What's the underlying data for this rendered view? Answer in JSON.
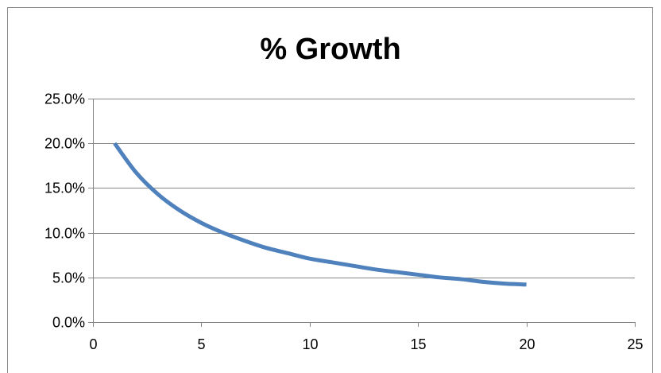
{
  "chart_data": {
    "type": "line",
    "title": "% Growth",
    "xlabel": "",
    "ylabel": "",
    "xlim": [
      0,
      25
    ],
    "ylim": [
      0,
      0.25
    ],
    "x_ticks": [
      0,
      5,
      10,
      15,
      20,
      25
    ],
    "x_tick_labels": [
      "0",
      "5",
      "10",
      "15",
      "20",
      "25"
    ],
    "y_ticks": [
      0,
      0.05,
      0.1,
      0.15,
      0.2,
      0.25
    ],
    "y_tick_labels": [
      "0.0%",
      "5.0%",
      "10.0%",
      "15.0%",
      "20.0%",
      "25.0%"
    ],
    "grid": "horizontal",
    "legend": "none",
    "series": [
      {
        "color": "#4f81bd",
        "x": [
          1,
          2,
          3,
          4,
          5,
          6,
          7,
          8,
          9,
          10,
          11,
          12,
          13,
          14,
          15,
          16,
          17,
          18,
          19,
          20
        ],
        "y": [
          0.2,
          0.167,
          0.143,
          0.125,
          0.111,
          0.1,
          0.091,
          0.083,
          0.077,
          0.071,
          0.067,
          0.063,
          0.059,
          0.056,
          0.053,
          0.05,
          0.048,
          0.045,
          0.043,
          0.042
        ]
      }
    ]
  }
}
